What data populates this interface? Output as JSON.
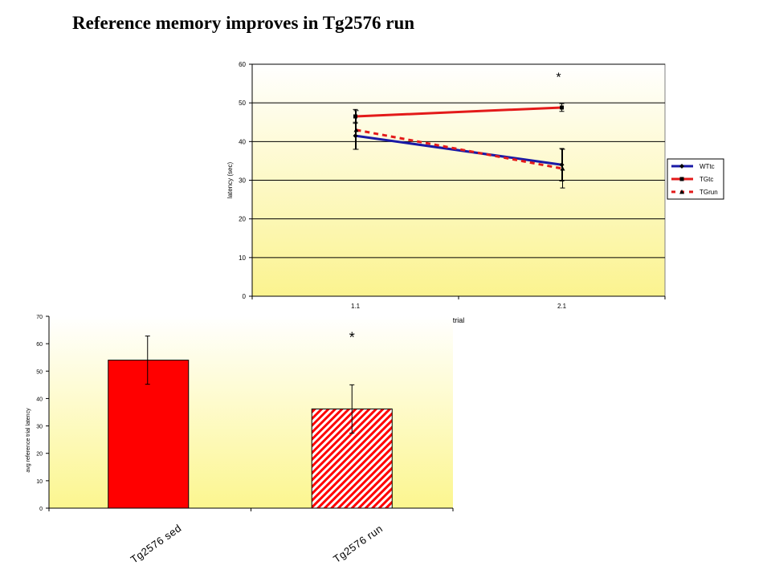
{
  "slide": {
    "title": "Reference memory improves in Tg2576 run"
  },
  "chart_data": [
    {
      "type": "line",
      "categories": [
        "1.1",
        "2.1"
      ],
      "xlabel": "trial",
      "ylabel": "latency (sec)",
      "ylim": [
        0,
        60
      ],
      "yticks": [
        0,
        10,
        20,
        30,
        40,
        50,
        60
      ],
      "grid": true,
      "legend": "right",
      "series": [
        {
          "name": "WTtc",
          "values": [
            41.5,
            34.0
          ],
          "errors": [
            3.5,
            4.2
          ],
          "color": "#1a1aa6",
          "style": "solid",
          "marker": "diamond"
        },
        {
          "name": "TGtc",
          "values": [
            46.5,
            48.8
          ],
          "errors": [
            1.8,
            1.0
          ],
          "color": "#e31a1a",
          "style": "solid",
          "marker": "square"
        },
        {
          "name": "TGrun",
          "values": [
            43.0,
            33.0
          ],
          "errors": [
            5.0,
            5.0
          ],
          "color": "#e31a1a",
          "style": "dashed",
          "marker": "triangle"
        }
      ],
      "annotations": [
        {
          "text": "*",
          "at": "2.1"
        }
      ]
    },
    {
      "type": "bar",
      "categories": [
        "Tg2576 sed",
        "Tg2576 run"
      ],
      "values": [
        54,
        36.2
      ],
      "errors": [
        8.8,
        8.8
      ],
      "ylabel": "avg reference trial latency",
      "ylim": [
        0,
        70
      ],
      "yticks": [
        0,
        10,
        20,
        30,
        40,
        50,
        60,
        70
      ],
      "fills": [
        "solid",
        "hatched"
      ],
      "color": "#ff0000",
      "annotations": [
        {
          "text": "*",
          "at": "Tg2576 run"
        }
      ]
    }
  ]
}
